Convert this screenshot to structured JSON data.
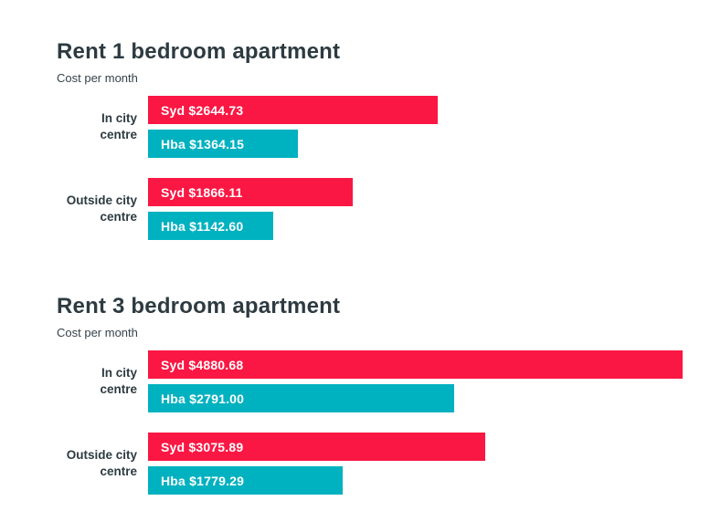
{
  "page": {
    "background": "#ffffff"
  },
  "colors": {
    "sydney_red": "#fb1743",
    "hobart_teal": "#00b1c0",
    "text_dark": "#2d3b41",
    "bar_label_text": "#ffffff"
  },
  "chart_data": [
    {
      "type": "bar",
      "orientation": "horizontal",
      "title": "Rent 1 bedroom apartment",
      "subtitle": "Cost per month",
      "categories": [
        "In city centre",
        "Outside city centre"
      ],
      "series": [
        {
          "name": "Syd",
          "color": "#fb1743",
          "values": [
            2644.73,
            1866.11
          ],
          "labels": [
            "Syd $2644.73",
            "Syd $1866.11"
          ]
        },
        {
          "name": "Hba",
          "color": "#00b1c0",
          "values": [
            1364.15,
            1142.6
          ],
          "labels": [
            "Hba $1364.15",
            "Hba $1142.60"
          ]
        }
      ],
      "xlim": [
        0,
        4880.68
      ],
      "value_prefix": "$",
      "grid": false,
      "legend": "none"
    },
    {
      "type": "bar",
      "orientation": "horizontal",
      "title": "Rent 3 bedroom apartment",
      "subtitle": "Cost per month",
      "categories": [
        "In city centre",
        "Outside city centre"
      ],
      "series": [
        {
          "name": "Syd",
          "color": "#fb1743",
          "values": [
            4880.68,
            3075.89
          ],
          "labels": [
            "Syd $4880.68",
            "Syd $3075.89"
          ]
        },
        {
          "name": "Hba",
          "color": "#00b1c0",
          "values": [
            2791.0,
            1779.29
          ],
          "labels": [
            "Hba $2791.00",
            "Hba $1779.29"
          ]
        }
      ],
      "xlim": [
        0,
        4880.68
      ],
      "value_prefix": "$",
      "grid": false,
      "legend": "none"
    }
  ]
}
